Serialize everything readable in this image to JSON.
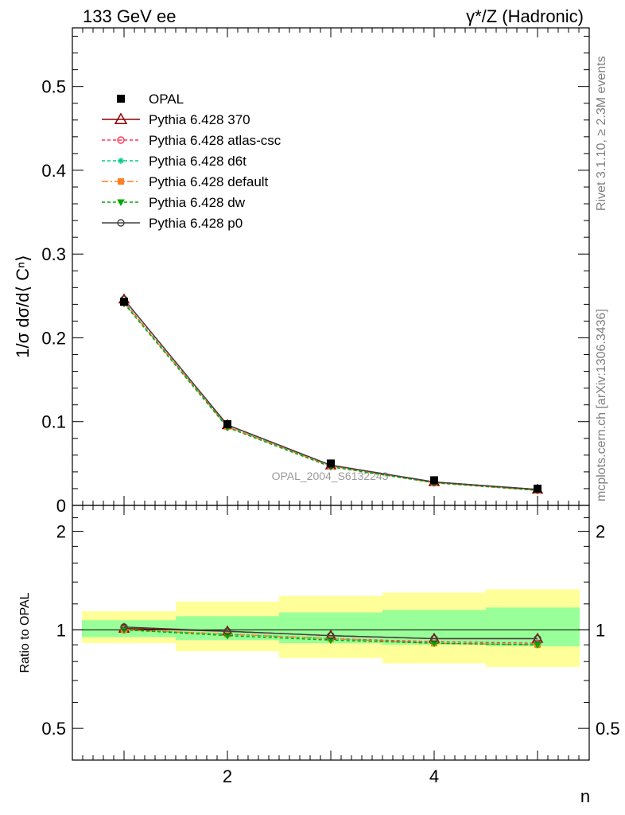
{
  "header": {
    "left": "133 GeV ee",
    "right": "γ*/Z (Hadronic)"
  },
  "side": {
    "rivet": "Rivet 3.1.10, ≥ 2.3M events",
    "mcplots": "mcplots.cern.ch [arXiv:1306.3436]"
  },
  "watermark": "OPAL_2004_S6132243",
  "colors": {
    "opal": "#000000",
    "p370": "#8b0000",
    "atlas": "#ff3355",
    "d6t": "#00cc88",
    "default": "#ff7f27",
    "dw": "#00aa00",
    "p0": "#404040",
    "band_inner": "#99ff99",
    "band_outer": "#ffff99"
  },
  "chart_data": [
    {
      "type": "line",
      "ylabel": "1/σ dσ/d⟨ Cⁿ⟩",
      "xlim": [
        0.5,
        5.5
      ],
      "ylim": [
        0,
        0.57
      ],
      "yticks": [
        0,
        0.1,
        0.2,
        0.3,
        0.4,
        0.5
      ],
      "ytick_labels": [
        "0",
        "0.1",
        "0.2",
        "0.3",
        "0.4",
        "0.5"
      ],
      "x": [
        1,
        2,
        3,
        4,
        5
      ],
      "series": [
        {
          "name": "OPAL",
          "values": [
            0.243,
            0.097,
            0.05,
            0.03,
            0.02
          ]
        },
        {
          "name": "Pythia 6.428 370",
          "values": [
            0.246,
            0.096,
            0.048,
            0.028,
            0.019
          ]
        },
        {
          "name": "Pythia 6.428 atlas-csc",
          "values": [
            0.243,
            0.094,
            0.047,
            0.027,
            0.018
          ]
        },
        {
          "name": "Pythia 6.428 d6t",
          "values": [
            0.242,
            0.094,
            0.047,
            0.027,
            0.018
          ]
        },
        {
          "name": "Pythia 6.428 default",
          "values": [
            0.242,
            0.094,
            0.047,
            0.027,
            0.018
          ]
        },
        {
          "name": "Pythia 6.428 dw",
          "values": [
            0.241,
            0.093,
            0.046,
            0.027,
            0.018
          ]
        },
        {
          "name": "Pythia 6.428 p0",
          "values": [
            0.246,
            0.096,
            0.048,
            0.028,
            0.019
          ]
        }
      ]
    },
    {
      "type": "line",
      "ylabel": "Ratio to OPAL",
      "xlabel": "n",
      "log_y": true,
      "xlim": [
        0.5,
        5.5
      ],
      "ylim": [
        0.4,
        2.4
      ],
      "xticks": [
        2,
        4
      ],
      "xtick_labels": [
        "2",
        "4"
      ],
      "yticks": [
        0.5,
        1,
        2
      ],
      "ytick_labels": [
        "0.5",
        "1",
        "2"
      ],
      "x": [
        1,
        2,
        3,
        4,
        5
      ],
      "bands": [
        {
          "name": "OPAL stat",
          "lo": [
            0.95,
            0.93,
            0.91,
            0.9,
            0.89
          ],
          "hi": [
            1.07,
            1.1,
            1.13,
            1.15,
            1.17
          ]
        },
        {
          "name": "OPAL total",
          "lo": [
            0.91,
            0.86,
            0.82,
            0.79,
            0.77
          ],
          "hi": [
            1.14,
            1.22,
            1.27,
            1.3,
            1.33
          ]
        }
      ],
      "series": [
        {
          "name": "Pythia 6.428 370",
          "values": [
            1.01,
            0.99,
            0.96,
            0.94,
            0.94
          ]
        },
        {
          "name": "Pythia 6.428 atlas-csc",
          "values": [
            1.0,
            0.97,
            0.94,
            0.92,
            0.91
          ]
        },
        {
          "name": "Pythia 6.428 d6t",
          "values": [
            1.0,
            0.97,
            0.94,
            0.91,
            0.9
          ]
        },
        {
          "name": "Pythia 6.428 default",
          "values": [
            1.0,
            0.97,
            0.94,
            0.91,
            0.9
          ]
        },
        {
          "name": "Pythia 6.428 dw",
          "values": [
            1.0,
            0.96,
            0.93,
            0.91,
            0.9
          ]
        },
        {
          "name": "Pythia 6.428 p0",
          "values": [
            1.02,
            0.99,
            0.96,
            0.94,
            0.94
          ]
        }
      ]
    }
  ]
}
